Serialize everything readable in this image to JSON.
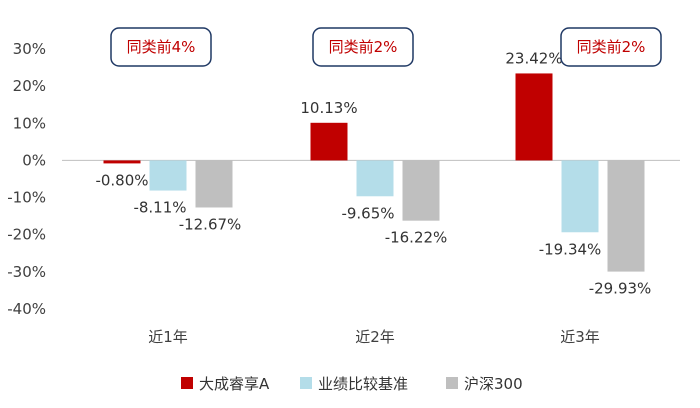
{
  "chart_data": {
    "type": "bar",
    "categories": [
      "近1年",
      "近2年",
      "近3年"
    ],
    "series": [
      {
        "name": "大成睿享A",
        "values": [
          -0.8,
          10.13,
          23.42
        ],
        "color": "#c00000"
      },
      {
        "name": "业绩比较基准",
        "values": [
          -8.11,
          -9.65,
          -19.34
        ],
        "color": "#b4dde9"
      },
      {
        "name": "沪深300",
        "values": [
          -12.67,
          -16.22,
          -29.93
        ],
        "color": "#bfbfbf"
      }
    ],
    "data_labels": [
      [
        "-0.80%",
        "-8.11%",
        "-12.67%"
      ],
      [
        "10.13%",
        "-9.65%",
        "-16.22%"
      ],
      [
        "23.42%",
        "-19.34%",
        "-29.93%"
      ]
    ],
    "rank_badges": [
      "同类前4%",
      "同类前2%",
      "同类前2%"
    ],
    "y_ticks": [
      30,
      20,
      10,
      0,
      -10,
      -20,
      -30,
      -40
    ],
    "y_tick_labels": [
      "30%",
      "20%",
      "10%",
      "0%",
      "-10%",
      "-20%",
      "-30%",
      "-40%"
    ],
    "ylim": [
      -40,
      30
    ],
    "grid": false,
    "legend_position": "bottom",
    "title": "",
    "xlabel": "",
    "ylabel": ""
  }
}
